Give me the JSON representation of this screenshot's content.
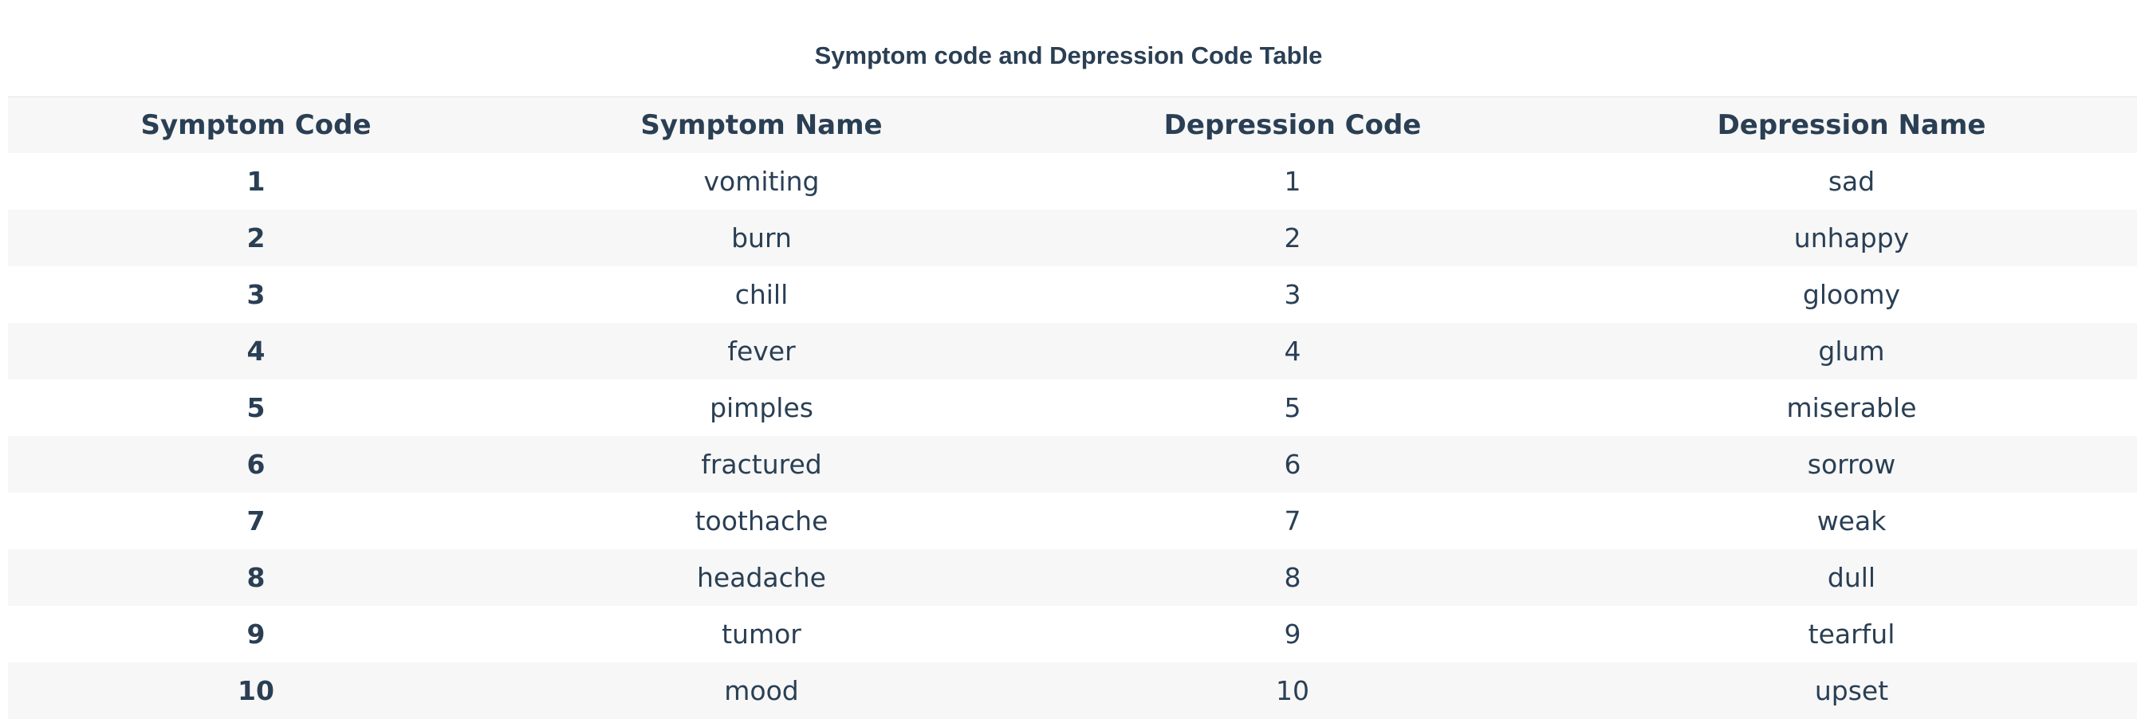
{
  "title": "Symptom code and Depression Code Table",
  "table": {
    "headers": [
      "Symptom Code",
      "Symptom Name",
      "Depression Code",
      "Depression Name"
    ],
    "rows": [
      [
        "1",
        "vomiting",
        "1",
        "sad"
      ],
      [
        "2",
        "burn",
        "2",
        "unhappy"
      ],
      [
        "3",
        "chill",
        "3",
        "gloomy"
      ],
      [
        "4",
        "fever",
        "4",
        "glum"
      ],
      [
        "5",
        "pimples",
        "5",
        "miserable"
      ],
      [
        "6",
        "fractured",
        "6",
        "sorrow"
      ],
      [
        "7",
        "toothache",
        "7",
        "weak"
      ],
      [
        "8",
        "headache",
        "8",
        "dull"
      ],
      [
        "9",
        "tumor",
        "9",
        "tearful"
      ],
      [
        "10",
        "mood",
        "10",
        "upset"
      ]
    ]
  },
  "colors": {
    "text": "#2a3f54",
    "row_stripe": "#f7f7f7",
    "background": "#ffffff"
  }
}
